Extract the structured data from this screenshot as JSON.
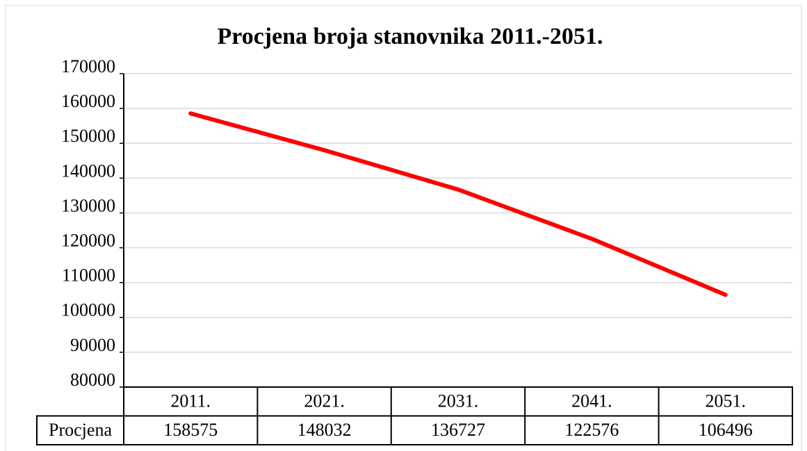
{
  "chart_data": {
    "type": "line",
    "title": "Procjena broja stanovnika 2011.-2051.",
    "categories": [
      "2011.",
      "2021.",
      "2031.",
      "2041.",
      "2051."
    ],
    "series": [
      {
        "name": "Procjena",
        "color": "#ff0000",
        "values": [
          158575,
          148032,
          136727,
          122576,
          106496
        ]
      }
    ],
    "ylim": [
      80000,
      170000
    ],
    "yticks": [
      80000,
      90000,
      100000,
      110000,
      120000,
      130000,
      140000,
      150000,
      160000,
      170000
    ],
    "grid": true
  }
}
